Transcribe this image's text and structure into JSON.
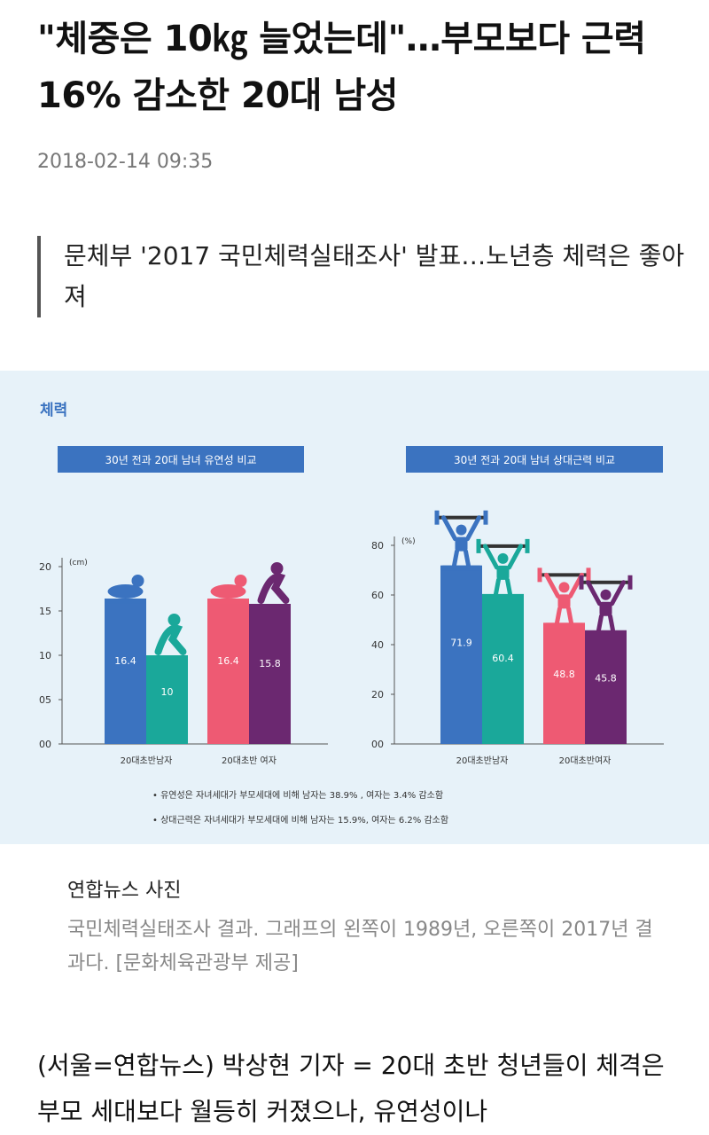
{
  "article": {
    "headline": "\"체중은 10㎏ 늘었는데\"…부모보다 근력 16% 감소한 20대 남성",
    "date": "2018-02-14 09:35",
    "subhead": "문체부 '2017 국민체력실태조사' 발표…노년층 체력은 좋아져",
    "caption_title": "연합뉴스 사진",
    "caption_desc": "국민체력실태조사 결과. 그래프의 왼쪽이 1989년, 오른쪽이 2017년 결과다. [문화체육관광부 제공]",
    "body": "(서울=연합뉴스) 박상현 기자 = 20대 초반 청년들이 체격은 부모 세대보다 월등히 커졌으나, 유연성이나"
  },
  "figure": {
    "section_title": "체력",
    "notes": [
      "• 유연성은 자녀세대가 부모세대에 비해 남자는 38.9% , 여자는 3.4% 감소함",
      "• 상대근력은 자녀세대가 부모세대에 비해 남자는 15.9%, 여자는 6.2% 감소함"
    ],
    "colors": {
      "blue": "#3b73c0",
      "teal": "#1aa89a",
      "pink": "#ee5a73",
      "purple": "#6b2870",
      "banner": "#3b73c0"
    }
  },
  "chart_data": [
    {
      "type": "bar",
      "title": "30년 전과 20대 남녀 유연성 비교",
      "ylabel": "(cm)",
      "ylim": [
        0,
        20
      ],
      "yticks": [
        "00",
        "05",
        "10",
        "15",
        "20"
      ],
      "categories": [
        "20대초반남자",
        "20대초반 여자"
      ],
      "bars": [
        {
          "value": 16.4,
          "label": "16.4",
          "color": "#3b73c0"
        },
        {
          "value": 10,
          "label": "10",
          "color": "#1aa89a"
        },
        {
          "value": 16.4,
          "label": "16.4",
          "color": "#ee5a73"
        },
        {
          "value": 15.8,
          "label": "15.8",
          "color": "#6b2870"
        }
      ]
    },
    {
      "type": "bar",
      "title": "30년 전과 20대 남녀 상대근력 비교",
      "ylabel": "(%)",
      "ylim": [
        0,
        80
      ],
      "yticks": [
        "00",
        "20",
        "40",
        "60",
        "80"
      ],
      "categories": [
        "20대초반남자",
        "20대초반여자"
      ],
      "bars": [
        {
          "value": 71.9,
          "label": "71.9",
          "color": "#3b73c0"
        },
        {
          "value": 60.4,
          "label": "60.4",
          "color": "#1aa89a"
        },
        {
          "value": 48.8,
          "label": "48.8",
          "color": "#ee5a73"
        },
        {
          "value": 45.8,
          "label": "45.8",
          "color": "#6b2870"
        }
      ]
    }
  ]
}
